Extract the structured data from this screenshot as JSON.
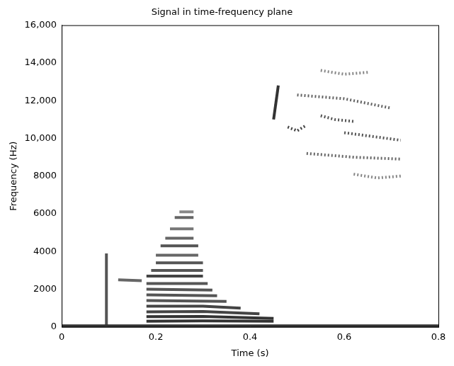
{
  "chart_data": {
    "type": "line",
    "title": "Signal in time-frequency plane",
    "x_label": "Time (s)",
    "y_label": "Frequency (Hz)",
    "xlim": [
      0,
      0.8
    ],
    "xticks": [
      0,
      0.2,
      0.4,
      0.6,
      0.8
    ],
    "ylim": [
      0,
      16000
    ],
    "yticks": [
      0,
      2000,
      4000,
      6000,
      8000,
      {
        "value": 10000,
        "label": "10,000"
      },
      {
        "value": 12000,
        "label": "12,000"
      },
      {
        "value": 14000,
        "label": "14,000"
      },
      {
        "value": 16000,
        "label": "16,000"
      }
    ],
    "grid": false,
    "series": [
      {
        "color": "#333333",
        "line_style": "solid",
        "x": [
          0,
          0.8
        ],
        "values": [
          60,
          60
        ]
      },
      {
        "color": "#555555",
        "line_style": "solid",
        "x": [
          0.095,
          0.095
        ],
        "values": [
          0,
          3900
        ]
      },
      {
        "color": "#666666",
        "line_style": "solid",
        "x": [
          0.12,
          0.17
        ],
        "values": [
          2500,
          2450
        ]
      },
      {
        "color": "#333333",
        "line_style": "solid",
        "x": [
          0.18,
          0.3,
          0.45
        ],
        "values": [
          300,
          320,
          300
        ]
      },
      {
        "color": "#333333",
        "line_style": "solid",
        "x": [
          0.18,
          0.3,
          0.45
        ],
        "values": [
          550,
          560,
          450
        ]
      },
      {
        "color": "#444444",
        "line_style": "solid",
        "x": [
          0.18,
          0.3,
          0.42
        ],
        "values": [
          800,
          820,
          700
        ]
      },
      {
        "color": "#444444",
        "line_style": "solid",
        "x": [
          0.18,
          0.3,
          0.38
        ],
        "values": [
          1100,
          1100,
          1000
        ]
      },
      {
        "color": "#555555",
        "line_style": "solid",
        "x": [
          0.18,
          0.35
        ],
        "values": [
          1400,
          1350
        ]
      },
      {
        "color": "#555555",
        "line_style": "solid",
        "x": [
          0.18,
          0.33
        ],
        "values": [
          1700,
          1650
        ]
      },
      {
        "color": "#555555",
        "line_style": "solid",
        "x": [
          0.18,
          0.32
        ],
        "values": [
          2000,
          1950
        ]
      },
      {
        "color": "#555555",
        "line_style": "solid",
        "x": [
          0.18,
          0.31
        ],
        "values": [
          2300,
          2300
        ]
      },
      {
        "color": "#444444",
        "line_style": "solid",
        "x": [
          0.18,
          0.3
        ],
        "values": [
          2700,
          2700
        ]
      },
      {
        "color": "#555555",
        "line_style": "solid",
        "x": [
          0.19,
          0.3
        ],
        "values": [
          3000,
          3000
        ]
      },
      {
        "color": "#555555",
        "line_style": "solid",
        "x": [
          0.2,
          0.3
        ],
        "values": [
          3400,
          3400
        ]
      },
      {
        "color": "#666666",
        "line_style": "solid",
        "x": [
          0.2,
          0.29
        ],
        "values": [
          3800,
          3800
        ]
      },
      {
        "color": "#555555",
        "line_style": "solid",
        "x": [
          0.21,
          0.29
        ],
        "values": [
          4300,
          4300
        ]
      },
      {
        "color": "#666666",
        "line_style": "solid",
        "x": [
          0.22,
          0.28
        ],
        "values": [
          4700,
          4700
        ]
      },
      {
        "color": "#777777",
        "line_style": "solid",
        "x": [
          0.23,
          0.28
        ],
        "values": [
          5200,
          5200
        ]
      },
      {
        "color": "#666666",
        "line_style": "solid",
        "x": [
          0.24,
          0.28
        ],
        "values": [
          5800,
          5800
        ]
      },
      {
        "color": "#888888",
        "line_style": "solid",
        "x": [
          0.25,
          0.28
        ],
        "values": [
          6100,
          6100
        ]
      },
      {
        "color": "#333333",
        "line_style": "solid",
        "x": [
          0.45,
          0.46
        ],
        "values": [
          11000,
          12800
        ]
      },
      {
        "color": "#444444",
        "line_style": "dotted",
        "x": [
          0.48,
          0.5,
          0.52
        ],
        "values": [
          10600,
          10400,
          10700
        ]
      },
      {
        "color": "#666666",
        "line_style": "dotted",
        "x": [
          0.5,
          0.6,
          0.7
        ],
        "values": [
          12300,
          12100,
          11600
        ]
      },
      {
        "color": "#555555",
        "line_style": "dotted",
        "x": [
          0.55,
          0.58,
          0.62
        ],
        "values": [
          11200,
          11000,
          10900
        ]
      },
      {
        "color": "#555555",
        "line_style": "dotted",
        "x": [
          0.6,
          0.66,
          0.72
        ],
        "values": [
          10300,
          10100,
          9900
        ]
      },
      {
        "color": "#666666",
        "line_style": "dotted",
        "x": [
          0.52,
          0.62,
          0.72
        ],
        "values": [
          9200,
          9000,
          8900
        ]
      },
      {
        "color": "#888888",
        "line_style": "dotted",
        "x": [
          0.55,
          0.6,
          0.65
        ],
        "values": [
          13600,
          13400,
          13500
        ]
      },
      {
        "color": "#888888",
        "line_style": "dotted",
        "x": [
          0.62,
          0.67,
          0.72
        ],
        "values": [
          8100,
          7900,
          8000
        ]
      }
    ]
  }
}
